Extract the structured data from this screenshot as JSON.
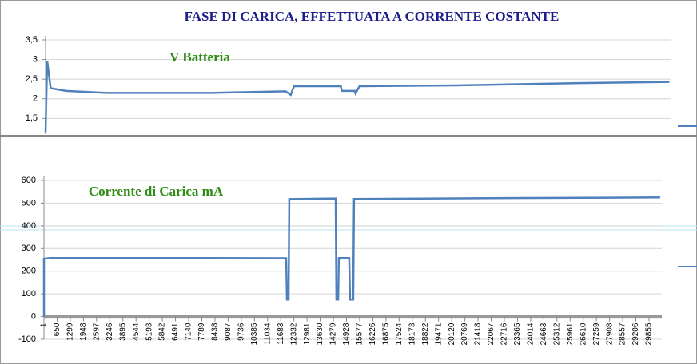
{
  "chart_data": [
    {
      "type": "line",
      "title": "FASE DI CARICA, EFFETTUATA A CORRENTE COSTANTE",
      "x": [
        1,
        80,
        250,
        1000,
        3000,
        8000,
        11700,
        11949,
        12106,
        14394,
        14433,
        15064,
        15103,
        15300,
        20000,
        26000,
        30403
      ],
      "series": [
        {
          "name": "V Batteria",
          "color": "#4f81bd",
          "values": [
            1.15,
            2.97,
            2.27,
            2.2,
            2.15,
            2.15,
            2.19,
            2.1,
            2.32,
            2.32,
            2.2,
            2.2,
            2.14,
            2.32,
            2.34,
            2.4,
            2.43
          ]
        }
      ],
      "xlim": [
        1,
        30500
      ],
      "ylim": [
        1.1,
        3.5
      ],
      "yticks": [
        {
          "value": 1.5,
          "label": "1,5"
        },
        2,
        {
          "value": 2.5,
          "label": "2,5"
        },
        3,
        {
          "value": 3.5,
          "label": "3,5"
        }
      ],
      "grid": true
    },
    {
      "type": "line",
      "x": [
        1,
        1,
        300,
        6000,
        11949,
        11988,
        12067,
        12106,
        14394,
        14433,
        14512,
        14551,
        15064,
        15103,
        15261,
        15300,
        22000,
        30403
      ],
      "series": [
        {
          "name": "Corrente di Carica mA",
          "color": "#4f81bd",
          "values": [
            0,
            255,
            258,
            258,
            257,
            75,
            75,
            518,
            520,
            75,
            75,
            258,
            258,
            75,
            75,
            518,
            522,
            525
          ]
        }
      ],
      "xlim": [
        1,
        30486
      ],
      "ylim": [
        -100,
        600
      ],
      "yticks": [
        -100,
        0,
        100,
        200,
        300,
        400,
        500,
        600
      ],
      "xticks": [
        1,
        650,
        1299,
        1948,
        2597,
        3246,
        3895,
        4544,
        5193,
        5842,
        6491,
        7140,
        7789,
        8438,
        9087,
        9736,
        10385,
        11034,
        11683,
        12332,
        12981,
        13630,
        14279,
        14928,
        15577,
        16226,
        16875,
        17524,
        18173,
        18822,
        19471,
        20120,
        20769,
        21418,
        22067,
        22716,
        23365,
        24014,
        24663,
        25312,
        25961,
        26610,
        27259,
        27908,
        28557,
        29206,
        29855
      ],
      "grid": true
    }
  ]
}
